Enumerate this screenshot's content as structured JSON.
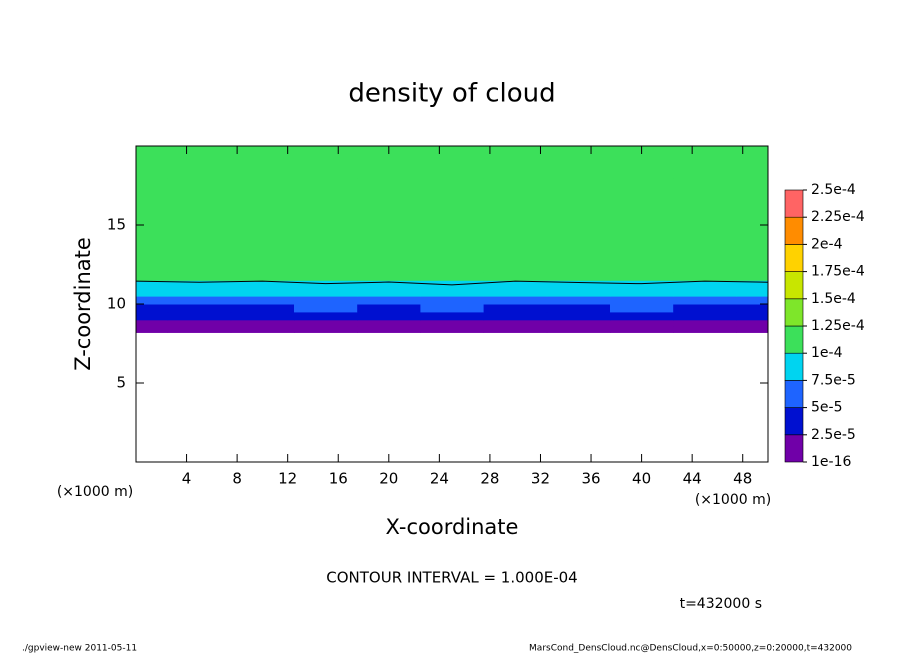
{
  "chart_data": {
    "type": "contour",
    "title": "density of cloud",
    "x_label": "X-coordinate",
    "y_label": "Z-coordinate",
    "x_unit_left": "(×1000 m)",
    "x_unit_right": "(×1000 m)",
    "annotations": [
      "CONTOUR INTERVAL = 1.000E-04",
      "t=432000 s"
    ],
    "footer_left": "./gpview-new  2011-05-11",
    "footer_right": "MarsCond_DensCloud.nc@DensCloud,x=0:50000,z=0:20000,t=432000",
    "xlim": [
      0,
      50
    ],
    "ylim": [
      0,
      20
    ],
    "xticks": [
      4,
      8,
      12,
      16,
      20,
      24,
      28,
      32,
      36,
      40,
      44,
      48
    ],
    "yticks": [
      5,
      10,
      15
    ],
    "x": [
      0,
      5,
      10,
      15,
      20,
      25,
      30,
      35,
      40,
      45,
      50
    ],
    "z": [
      8.2,
      8.6,
      9,
      9.5,
      10,
      10.5,
      11,
      11.5,
      12,
      15,
      18
    ],
    "values": [
      [
        5e-06,
        6e-06,
        5e-06,
        4e-06,
        5e-06,
        6e-06,
        5e-06,
        4e-06,
        5e-06,
        6e-06,
        5e-06
      ],
      [
        1.5e-05,
        2.2e-05,
        1.4e-05,
        1.3e-05,
        1.8e-05,
        1.2e-05,
        1.6e-05,
        2.1e-05,
        1.4e-05,
        1.5e-05,
        1.7e-05
      ],
      [
        3e-05,
        2.8e-05,
        3.2e-05,
        3.5e-05,
        3e-05,
        3.3e-05,
        2.9e-05,
        3.1e-05,
        3.4e-05,
        3e-05,
        3.2e-05
      ],
      [
        4.5e-05,
        4.2e-05,
        4.8e-05,
        5.2e-05,
        4.6e-05,
        5.5e-05,
        4.4e-05,
        4.9e-05,
        5.3e-05,
        4.5e-05,
        4.7e-05
      ],
      [
        6.2e-05,
        6.6e-05,
        5.9e-05,
        6.8e-05,
        6.4e-05,
        7e-05,
        6.1e-05,
        6.5e-05,
        6.9e-05,
        6.3e-05,
        6e-05
      ],
      [
        7.8e-05,
        8.2e-05,
        7.6e-05,
        8.4e-05,
        8e-05,
        8.6e-05,
        7.9e-05,
        8.1e-05,
        8.5e-05,
        7.7e-05,
        8.3e-05
      ],
      [
        9.2e-05,
        9.4e-05,
        9.1e-05,
        9.6e-05,
        9.3e-05,
        9.7e-05,
        9.2e-05,
        9.5e-05,
        9.6e-05,
        9.1e-05,
        9.4e-05
      ],
      [
        0.000101,
        0.000102,
        0.000101,
        0.000103,
        0.000102,
        0.000104,
        0.000101,
        0.000102,
        0.000103,
        0.000101,
        0.000102
      ],
      [
        0.000108,
        0.000109,
        0.000107,
        0.00011,
        0.000108,
        0.000111,
        0.000108,
        0.000109,
        0.00011,
        0.000107,
        0.000109
      ],
      [
        0.000115,
        0.000116,
        0.000114,
        0.000117,
        0.000115,
        0.000118,
        0.000115,
        0.000116,
        0.000117,
        0.000114,
        0.000116
      ],
      [
        0.000112,
        0.000113,
        0.000111,
        0.000114,
        0.000112,
        0.000115,
        0.000112,
        0.000113,
        0.000114,
        0.000111,
        0.000113
      ]
    ],
    "contour_level": 0.0001,
    "levels": [
      1e-16,
      {
        "value": 2.5e-05,
        "label": "2.5e-5"
      },
      {
        "value": 5e-05,
        "label": "5e-5"
      },
      {
        "value": 7.5e-05,
        "label": "7.5e-5"
      },
      {
        "value": 0.0001,
        "label": "1e-4"
      },
      {
        "value": 0.000125,
        "label": "1.25e-4"
      },
      {
        "value": 0.00015,
        "label": "1.5e-4"
      },
      {
        "value": 0.000175,
        "label": "1.75e-4"
      },
      {
        "value": 0.0002,
        "label": "2e-4"
      },
      {
        "value": 0.000225,
        "label": "2.25e-4"
      },
      {
        "value": 0.00025,
        "label": "2.5e-4"
      }
    ],
    "colors": [
      "#7000a8",
      "#0010d0",
      "#1e64ff",
      "#00d4f0",
      "#3ce05a",
      "#7ee62a",
      "#c8e600",
      "#ffd200",
      "#ff8c00",
      "#ff6464"
    ]
  }
}
